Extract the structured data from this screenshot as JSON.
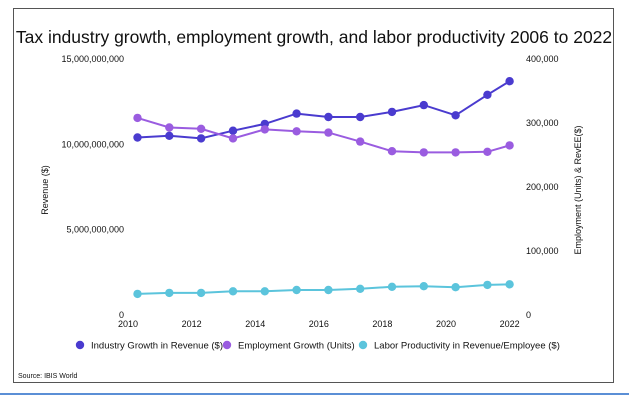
{
  "chart_data": {
    "type": "line",
    "title": "Tax industry growth, employment growth, and labor productivity 2006 to 2022",
    "xlabel": "",
    "ylabel_left": "Revenue ($)",
    "ylabel_right": "Employment (Units) & RevEE($)",
    "x_ticks": [
      "2010",
      "2012",
      "2014",
      "2016",
      "2018",
      "2020",
      "2022"
    ],
    "x_range": [
      2010,
      2022.2
    ],
    "left_axis": {
      "range": [
        0,
        15000000000
      ],
      "ticks": [
        {
          "value": 0,
          "label": "0"
        },
        {
          "value": 5000000000,
          "label": "5,000,000,000"
        },
        {
          "value": 10000000000,
          "label": "10,000,000,000"
        },
        {
          "value": 15000000000,
          "label": "15,000,000,000"
        }
      ]
    },
    "right_axis": {
      "range": [
        0,
        400000
      ],
      "ticks": [
        {
          "value": 0,
          "label": "0"
        },
        {
          "value": 100000,
          "label": "100,000"
        },
        {
          "value": 200000,
          "label": "200,000"
        },
        {
          "value": 300000,
          "label": "300,000"
        },
        {
          "value": 400000,
          "label": "400,000"
        }
      ]
    },
    "x": [
      2010.3,
      2011.3,
      2012.3,
      2013.3,
      2014.3,
      2015.3,
      2016.3,
      2017.3,
      2018.3,
      2019.3,
      2020.3,
      2021.3,
      2022
    ],
    "series": [
      {
        "name": "Industry Growth in Revenue ($)",
        "axis": "left",
        "color": "#4a3bcf",
        "values": [
          10400000000,
          10500000000,
          10350000000,
          10800000000,
          11200000000,
          11800000000,
          11600000000,
          11600000000,
          11900000000,
          12300000000,
          11700000000,
          12900000000,
          13700000000
        ]
      },
      {
        "name": "Employment Growth (Units)",
        "axis": "right",
        "color": "#9a5ce0",
        "values": [
          308000,
          293000,
          291000,
          276000,
          290000,
          287000,
          285000,
          271000,
          256000,
          254000,
          254000,
          255000,
          265000
        ]
      },
      {
        "name": "Labor Productivity in Revenue/Employee ($)",
        "axis": "right",
        "color": "#5bc4dc",
        "values": [
          33000,
          34500,
          34500,
          37000,
          37000,
          39000,
          39000,
          41000,
          44000,
          45000,
          43500,
          47000,
          48000
        ]
      }
    ],
    "legend_position": "bottom",
    "grid": false
  },
  "source": "Source: IBIS World"
}
